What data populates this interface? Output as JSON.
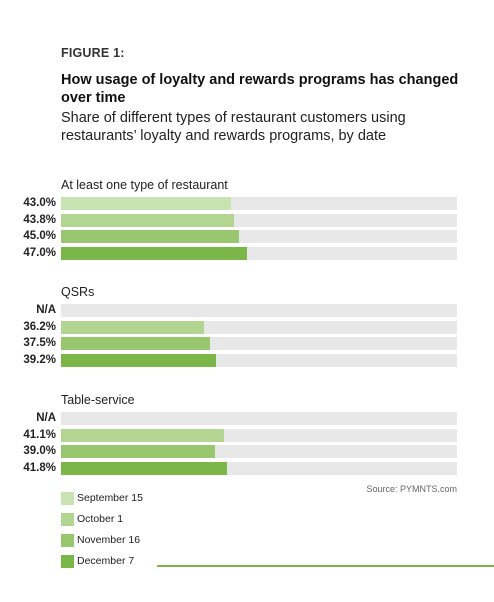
{
  "figure_label": "FIGURE 1:",
  "colors": {
    "track": "#e8e8e8",
    "rule": "#7ab648"
  },
  "chart_data": {
    "type": "bar",
    "orientation": "horizontal",
    "title": "How usage of loyalty and rewards programs has changed over time",
    "subtitle": "Share of different types of restaurant customers using restaurants’ loyalty and rewards programs, by date",
    "xlim": [
      0,
      100
    ],
    "unit": "%",
    "series": [
      {
        "name": "September 15",
        "color": "#c9e2b1"
      },
      {
        "name": "October 1",
        "color": "#b2d691"
      },
      {
        "name": "November 16",
        "color": "#98c76f"
      },
      {
        "name": "December 7",
        "color": "#7ab648"
      }
    ],
    "groups": [
      {
        "label": "At least one type of restaurant",
        "values": [
          43.0,
          43.8,
          45.0,
          47.0
        ],
        "labels": [
          "43.0%",
          "43.8%",
          "45.0%",
          "47.0%"
        ]
      },
      {
        "label": "QSRs",
        "values": [
          null,
          36.2,
          37.5,
          39.2
        ],
        "labels": [
          "N/A",
          "36.2%",
          "37.5%",
          "39.2%"
        ]
      },
      {
        "label": "Table-service",
        "values": [
          null,
          41.1,
          39.0,
          41.8
        ],
        "labels": [
          "N/A",
          "41.1%",
          "39.0%",
          "41.8%"
        ]
      }
    ],
    "legend_position": "bottom-left",
    "source": "Source: PYMNTS.com"
  }
}
